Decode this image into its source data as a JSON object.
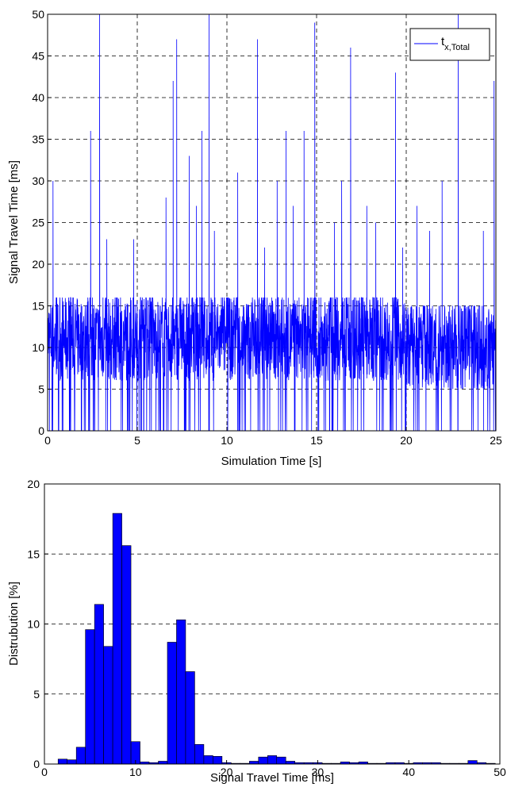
{
  "chart_data": [
    {
      "type": "line",
      "xlabel": "Simulation Time [s]",
      "ylabel": "Signal Travel Time [ms]",
      "xlim": [
        0,
        25
      ],
      "ylim": [
        0,
        50
      ],
      "xticks": [
        0,
        5,
        10,
        15,
        20,
        25
      ],
      "yticks": [
        0,
        5,
        10,
        15,
        20,
        25,
        30,
        35,
        40,
        45,
        50
      ],
      "grid": true,
      "legend": {
        "position": "top-right",
        "entries": [
          {
            "base": "t",
            "sub": "x,Total"
          }
        ]
      },
      "color": "#0000ff",
      "series": [
        {
          "name": "t_x,Total",
          "segments": [
            {
              "x_range": [
                0,
                10
              ],
              "band_ms": [
                6,
                16
              ],
              "count": 900
            },
            {
              "x_range": [
                10,
                20
              ],
              "band_ms": [
                6,
                16
              ],
              "count": 900
            },
            {
              "x_range": [
                20,
                25
              ],
              "band_ms": [
                5,
                15
              ],
              "count": 450
            }
          ],
          "spikes": [
            [
              0.3,
              30
            ],
            [
              2.4,
              36
            ],
            [
              2.9,
              50
            ],
            [
              3.3,
              23
            ],
            [
              4.8,
              23
            ],
            [
              6.6,
              28
            ],
            [
              7.0,
              42
            ],
            [
              7.2,
              47
            ],
            [
              7.9,
              33
            ],
            [
              8.3,
              27
            ],
            [
              8.6,
              36
            ],
            [
              9.0,
              50
            ],
            [
              9.3,
              24
            ],
            [
              10.6,
              31
            ],
            [
              11.7,
              47
            ],
            [
              12.1,
              22
            ],
            [
              12.8,
              30
            ],
            [
              13.3,
              36
            ],
            [
              13.7,
              27
            ],
            [
              14.3,
              36
            ],
            [
              14.9,
              49
            ],
            [
              16.0,
              25
            ],
            [
              16.4,
              30
            ],
            [
              16.9,
              46
            ],
            [
              17.8,
              27
            ],
            [
              18.3,
              25
            ],
            [
              19.4,
              43
            ],
            [
              19.8,
              22
            ],
            [
              20.6,
              27
            ],
            [
              21.3,
              24
            ],
            [
              22.0,
              30
            ],
            [
              22.9,
              50
            ],
            [
              24.3,
              24
            ],
            [
              24.9,
              42
            ]
          ]
        }
      ]
    },
    {
      "type": "bar",
      "xlabel": "Signal Travel Time [ms]",
      "ylabel": "Distrubution [%]",
      "xlim": [
        0,
        50
      ],
      "ylim": [
        0,
        20
      ],
      "xticks": [
        0,
        10,
        20,
        30,
        40,
        50
      ],
      "yticks": [
        0,
        5,
        10,
        15,
        20
      ],
      "grid": true,
      "color": "#0000ff",
      "bin_width": 1,
      "bins": [
        {
          "x": 2,
          "value": 0.35
        },
        {
          "x": 3,
          "value": 0.3
        },
        {
          "x": 4,
          "value": 1.2
        },
        {
          "x": 5,
          "value": 9.6
        },
        {
          "x": 6,
          "value": 11.4
        },
        {
          "x": 7,
          "value": 8.4
        },
        {
          "x": 8,
          "value": 17.9
        },
        {
          "x": 9,
          "value": 15.6
        },
        {
          "x": 10,
          "value": 1.6
        },
        {
          "x": 11,
          "value": 0.15
        },
        {
          "x": 12,
          "value": 0.1
        },
        {
          "x": 13,
          "value": 0.2
        },
        {
          "x": 14,
          "value": 8.7
        },
        {
          "x": 15,
          "value": 10.3
        },
        {
          "x": 16,
          "value": 6.6
        },
        {
          "x": 17,
          "value": 1.4
        },
        {
          "x": 18,
          "value": 0.6
        },
        {
          "x": 19,
          "value": 0.55
        },
        {
          "x": 20,
          "value": 0.1
        },
        {
          "x": 21,
          "value": 0.05
        },
        {
          "x": 22,
          "value": 0.05
        },
        {
          "x": 23,
          "value": 0.2
        },
        {
          "x": 24,
          "value": 0.5
        },
        {
          "x": 25,
          "value": 0.6
        },
        {
          "x": 26,
          "value": 0.5
        },
        {
          "x": 27,
          "value": 0.2
        },
        {
          "x": 28,
          "value": 0.1
        },
        {
          "x": 29,
          "value": 0.1
        },
        {
          "x": 30,
          "value": 0.1
        },
        {
          "x": 31,
          "value": 0.05
        },
        {
          "x": 32,
          "value": 0.05
        },
        {
          "x": 33,
          "value": 0.15
        },
        {
          "x": 34,
          "value": 0.1
        },
        {
          "x": 35,
          "value": 0.15
        },
        {
          "x": 36,
          "value": 0.05
        },
        {
          "x": 37,
          "value": 0.05
        },
        {
          "x": 38,
          "value": 0.1
        },
        {
          "x": 39,
          "value": 0.1
        },
        {
          "x": 40,
          "value": 0.05
        },
        {
          "x": 41,
          "value": 0.1
        },
        {
          "x": 42,
          "value": 0.1
        },
        {
          "x": 43,
          "value": 0.1
        },
        {
          "x": 44,
          "value": 0.05
        },
        {
          "x": 45,
          "value": 0.05
        },
        {
          "x": 46,
          "value": 0.05
        },
        {
          "x": 47,
          "value": 0.25
        },
        {
          "x": 48,
          "value": 0.1
        },
        {
          "x": 49,
          "value": 0.05
        }
      ]
    }
  ]
}
